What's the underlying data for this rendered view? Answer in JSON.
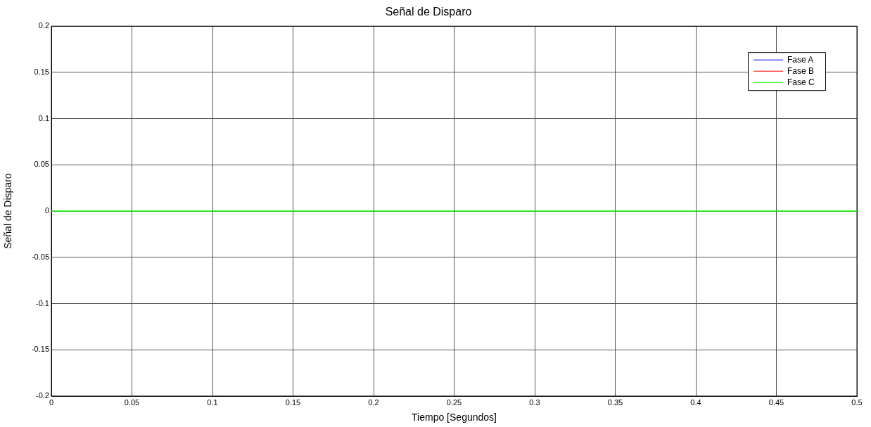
{
  "chart_data": {
    "type": "line",
    "title": "Señal de Disparo",
    "xlabel": "Tiempo [Segundos]",
    "ylabel": "Señal de Disparo",
    "x": [
      0,
      0.5
    ],
    "series": [
      {
        "name": "Fase A",
        "color": "#0000ff",
        "values": [
          null,
          null
        ]
      },
      {
        "name": "Fase B",
        "color": "#ff0000",
        "values": [
          null,
          null
        ]
      },
      {
        "name": "Fase C",
        "color": "#00ff00",
        "values": [
          0,
          0
        ]
      }
    ],
    "xlim": [
      0,
      0.5
    ],
    "xticks": [
      0,
      0.05,
      0.1,
      0.15,
      0.2,
      0.25,
      0.3,
      0.35,
      0.4,
      0.45,
      0.5
    ],
    "ylim": [
      -0.2,
      0.2
    ],
    "yticks": [
      -0.2,
      -0.15,
      -0.1,
      -0.05,
      0,
      0.05,
      0.1,
      0.15,
      0.2
    ],
    "grid": true,
    "legend": "top right",
    "marker": "none",
    "line_style": "solid"
  }
}
